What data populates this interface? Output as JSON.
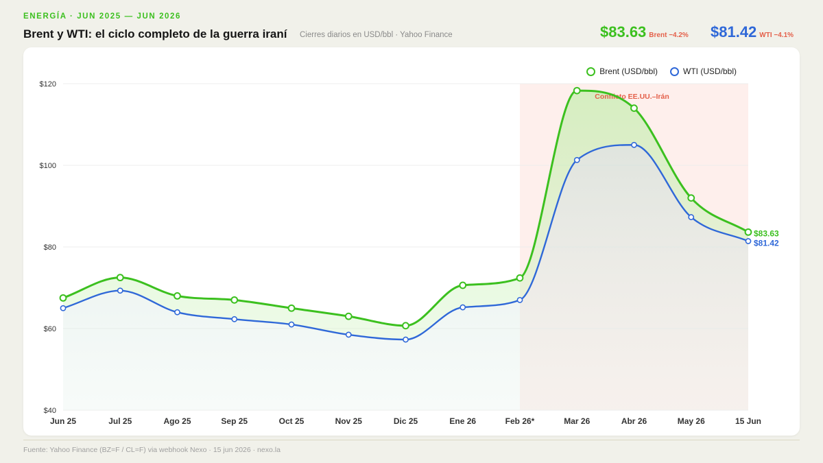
{
  "header": {
    "kicker": "ENERGÍA · JUN 2025 — JUN 2026",
    "title": "Brent y WTI: el ciclo completo de la guerra iraní",
    "subtitle": "Cierres diarios en USD/bbl · Yahoo Finance"
  },
  "prices": {
    "brent": {
      "value": "$83.63",
      "change": "Brent −4.2%"
    },
    "wti": {
      "value": "$81.42",
      "change": "WTI −4.1%"
    }
  },
  "footer": {
    "source": "Fuente: Yahoo Finance (BZ=F / CL=F) via webhook Nexo · 15 jun 2026 · nexo.la"
  },
  "colors": {
    "brent": "#3cc01f",
    "wti": "#2f68d8",
    "conflict": "#fde9e6",
    "conflict_label": "#e4604a"
  },
  "chart_data": {
    "type": "line",
    "categories": [
      "Jun 25",
      "Jul 25",
      "Ago 25",
      "Sep 25",
      "Oct 25",
      "Nov 25",
      "Dic 25",
      "Ene 26",
      "Feb 26*",
      "Mar 26",
      "Abr 26",
      "May 26",
      "15 Jun"
    ],
    "series": [
      {
        "name": "Brent (USD/bbl)",
        "values": [
          67.5,
          72.5,
          68.0,
          67.0,
          65.0,
          63.0,
          60.7,
          70.6,
          72.4,
          118.3,
          114.0,
          92.0,
          83.63
        ]
      },
      {
        "name": "WTI (USD/bbl)",
        "values": [
          65.0,
          69.3,
          64.0,
          62.3,
          61.0,
          58.5,
          57.3,
          65.2,
          67.0,
          101.3,
          105.0,
          87.3,
          81.42
        ]
      }
    ],
    "yticks": [
      "$40",
      "$60",
      "$80",
      "$100",
      "$120"
    ],
    "ylim": [
      40,
      120
    ],
    "grid": true,
    "legend": "top-right",
    "annotation": {
      "label": "Conflicto EE.UU.–Irán",
      "from": "Feb 26*",
      "to": "15 Jun"
    },
    "end_labels": [
      "$83.63",
      "$81.42"
    ]
  }
}
